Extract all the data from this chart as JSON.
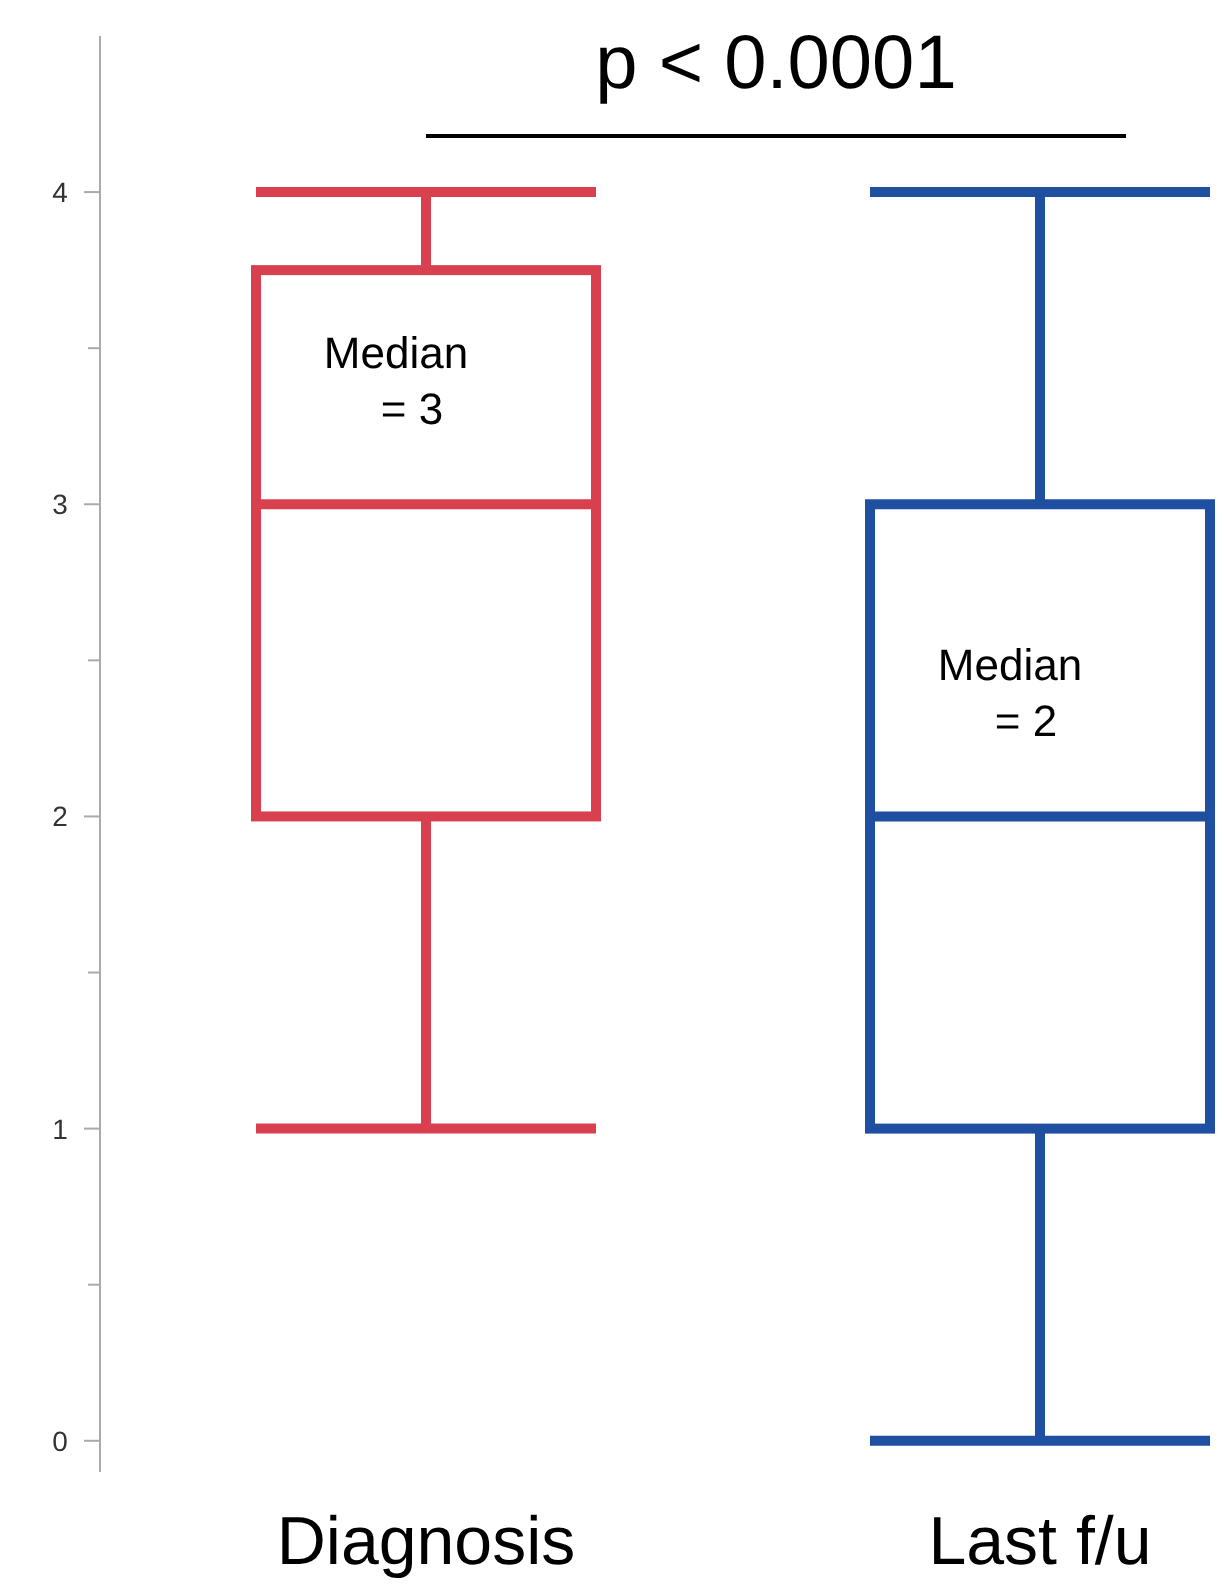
{
  "chart_data": {
    "type": "box",
    "categories": [
      "Diagnosis",
      "Last f/u"
    ],
    "colors": [
      "#d9404f",
      "#1f4fa0"
    ],
    "boxes": [
      {
        "low": 1,
        "q1": 2,
        "median": 3,
        "q3": 3.75,
        "high": 4
      },
      {
        "low": 0,
        "q1": 1,
        "median": 2,
        "q3": 3,
        "high": 4
      }
    ],
    "ylim": [
      -0.1,
      4.5
    ],
    "yticks": [
      0,
      {
        "value": 0.5,
        "label": null
      },
      1,
      {
        "value": 1.5,
        "label": null
      },
      2,
      {
        "value": 2.5,
        "label": null
      },
      3,
      {
        "value": 3.5,
        "label": null
      },
      4
    ],
    "annotations": [
      "p < 0.0001",
      {
        "text": "Median\n= 3",
        "x": "Diagnosis",
        "y": 3
      },
      {
        "text": "Median\n= 2",
        "x": "Last f/u",
        "y": 2
      }
    ]
  }
}
